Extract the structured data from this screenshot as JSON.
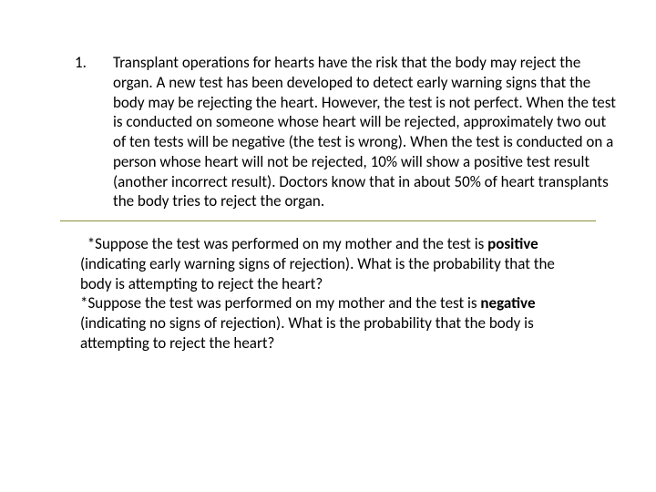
{
  "colors": {
    "text": "#000000",
    "background": "#ffffff",
    "divider": "#8a8f3d"
  },
  "typography": {
    "font_family": "Calibri, 'Segoe UI', Arial, sans-serif",
    "font_size_pt": 13,
    "line_height": 1.28
  },
  "list": {
    "number": "1.",
    "body": "Transplant operations for hearts have the risk that the body may reject the organ.  A new test has been developed to detect early warning signs that the body may be rejecting the heart.  However, the test is not perfect.  When the test is conducted on someone whose heart will be rejected, approximately two out of ten tests will be negative (the test is wrong).  When the test is conducted on a person whose heart will not be rejected, 10% will show a positive test result (another incorrect result).  Doctors know that in about 50% of heart transplants the body tries to reject the organ."
  },
  "q1": {
    "lead": "  *Suppose the test was performed on my mother and the test is ",
    "bold": "positive",
    "rest": " (indicating early warning signs of rejection).  What is the probability that the body is attempting to reject the heart?"
  },
  "q2": {
    "lead": "*Suppose the test was performed on my mother and the test is ",
    "bold": "negative",
    "rest": " (indicating no signs of rejection).  What is the probability that the body is attempting to reject the heart?"
  }
}
